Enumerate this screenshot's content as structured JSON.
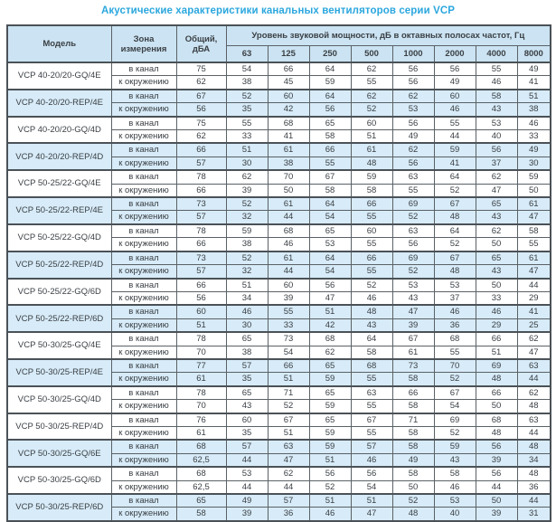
{
  "title": "Акустические характеристики канальных вентиляторов  серии VCP",
  "table": {
    "headers": {
      "model": "Модель",
      "zone": "Зона измерения",
      "total": "Общий, дБА",
      "spl": "Уровень звуковой мощности, дБ в октавных полосах частот, Гц",
      "frequencies": [
        "63",
        "125",
        "250",
        "500",
        "1000",
        "2000",
        "4000",
        "8000"
      ]
    },
    "zone_labels": [
      "в канал",
      "к окружению"
    ],
    "rows": [
      {
        "model": "VCP 40-20/20-GQ/4E",
        "highlight": false,
        "duct": {
          "total": "75",
          "values": [
            "54",
            "66",
            "64",
            "62",
            "56",
            "56",
            "55",
            "49"
          ]
        },
        "ambient": {
          "total": "62",
          "values": [
            "38",
            "45",
            "59",
            "55",
            "56",
            "49",
            "46",
            "41"
          ]
        }
      },
      {
        "model": "VCP 40-20/20-REP/4E",
        "highlight": true,
        "duct": {
          "total": "67",
          "values": [
            "52",
            "60",
            "64",
            "62",
            "62",
            "60",
            "58",
            "51"
          ]
        },
        "ambient": {
          "total": "56",
          "values": [
            "35",
            "42",
            "56",
            "52",
            "53",
            "46",
            "43",
            "38"
          ]
        }
      },
      {
        "model": "VCP 40-20/20-GQ/4D",
        "highlight": false,
        "duct": {
          "total": "75",
          "values": [
            "55",
            "68",
            "65",
            "60",
            "56",
            "55",
            "53",
            "46"
          ]
        },
        "ambient": {
          "total": "62",
          "values": [
            "33",
            "41",
            "58",
            "51",
            "49",
            "44",
            "40",
            "33"
          ]
        }
      },
      {
        "model": "VCP 40-20/20-REP/4D",
        "highlight": true,
        "duct": {
          "total": "66",
          "values": [
            "51",
            "61",
            "66",
            "61",
            "62",
            "59",
            "56",
            "49"
          ]
        },
        "ambient": {
          "total": "57",
          "values": [
            "30",
            "38",
            "55",
            "48",
            "56",
            "41",
            "37",
            "30"
          ]
        }
      },
      {
        "model": "VCP 50-25/22-GQ/4E",
        "highlight": false,
        "duct": {
          "total": "78",
          "values": [
            "62",
            "70",
            "67",
            "59",
            "63",
            "64",
            "62",
            "59"
          ]
        },
        "ambient": {
          "total": "66",
          "values": [
            "39",
            "50",
            "58",
            "58",
            "55",
            "52",
            "47",
            "50"
          ]
        }
      },
      {
        "model": "VCP 50-25/22-REP/4E",
        "highlight": true,
        "duct": {
          "total": "73",
          "values": [
            "52",
            "61",
            "64",
            "66",
            "69",
            "67",
            "65",
            "61"
          ]
        },
        "ambient": {
          "total": "57",
          "values": [
            "32",
            "44",
            "54",
            "55",
            "52",
            "48",
            "43",
            "47"
          ]
        }
      },
      {
        "model": "VCP 50-25/22-GQ/4D",
        "highlight": false,
        "duct": {
          "total": "78",
          "values": [
            "59",
            "68",
            "65",
            "60",
            "63",
            "64",
            "62",
            "58"
          ]
        },
        "ambient": {
          "total": "66",
          "values": [
            "38",
            "46",
            "53",
            "55",
            "56",
            "52",
            "50",
            "55"
          ]
        }
      },
      {
        "model": "VCP 50-25/22-REP/4D",
        "highlight": true,
        "duct": {
          "total": "73",
          "values": [
            "52",
            "61",
            "64",
            "66",
            "69",
            "67",
            "65",
            "61"
          ]
        },
        "ambient": {
          "total": "57",
          "values": [
            "32",
            "44",
            "54",
            "55",
            "52",
            "48",
            "43",
            "47"
          ]
        }
      },
      {
        "model": "VCP 50-25/22-GQ/6D",
        "highlight": false,
        "duct": {
          "total": "66",
          "values": [
            "51",
            "60",
            "56",
            "52",
            "53",
            "53",
            "50",
            "44"
          ]
        },
        "ambient": {
          "total": "56",
          "values": [
            "34",
            "39",
            "47",
            "46",
            "43",
            "37",
            "33",
            "29"
          ]
        }
      },
      {
        "model": "VCP 50-25/22-REP/6D",
        "highlight": true,
        "duct": {
          "total": "60",
          "values": [
            "46",
            "55",
            "51",
            "48",
            "47",
            "46",
            "46",
            "41"
          ]
        },
        "ambient": {
          "total": "51",
          "values": [
            "30",
            "33",
            "42",
            "43",
            "39",
            "36",
            "29",
            "25"
          ]
        }
      },
      {
        "model": "VCP 50-30/25-GQ/4E",
        "highlight": false,
        "duct": {
          "total": "78",
          "values": [
            "65",
            "73",
            "68",
            "64",
            "67",
            "68",
            "66",
            "62"
          ]
        },
        "ambient": {
          "total": "70",
          "values": [
            "38",
            "54",
            "62",
            "58",
            "61",
            "55",
            "51",
            "47"
          ]
        }
      },
      {
        "model": "VCP 50-30/25-REP/4E",
        "highlight": true,
        "duct": {
          "total": "77",
          "values": [
            "57",
            "66",
            "65",
            "68",
            "73",
            "70",
            "69",
            "63"
          ]
        },
        "ambient": {
          "total": "61",
          "values": [
            "35",
            "51",
            "59",
            "55",
            "58",
            "52",
            "48",
            "44"
          ]
        }
      },
      {
        "model": "VCP 50-30/25-GQ/4D",
        "highlight": false,
        "duct": {
          "total": "78",
          "values": [
            "65",
            "71",
            "65",
            "63",
            "66",
            "67",
            "66",
            "62"
          ]
        },
        "ambient": {
          "total": "70",
          "values": [
            "43",
            "52",
            "59",
            "55",
            "58",
            "54",
            "50",
            "48"
          ]
        }
      },
      {
        "model": "VCP 50-30/25-REP/4D",
        "highlight": false,
        "duct": {
          "total": "76",
          "values": [
            "60",
            "67",
            "65",
            "67",
            "71",
            "69",
            "68",
            "63"
          ]
        },
        "ambient": {
          "total": "61",
          "values": [
            "35",
            "51",
            "59",
            "55",
            "58",
            "52",
            "48",
            "44"
          ]
        }
      },
      {
        "model": "VCP 50-30/25-GQ/6E",
        "highlight": true,
        "duct": {
          "total": "68",
          "values": [
            "57",
            "63",
            "59",
            "57",
            "58",
            "59",
            "56",
            "48"
          ]
        },
        "ambient": {
          "total": "62,5",
          "values": [
            "44",
            "47",
            "51",
            "46",
            "49",
            "43",
            "39",
            "34"
          ]
        }
      },
      {
        "model": "VCP 50-30/25-GQ/6D",
        "highlight": false,
        "duct": {
          "total": "68",
          "values": [
            "53",
            "62",
            "56",
            "56",
            "58",
            "58",
            "56",
            "48"
          ]
        },
        "ambient": {
          "total": "62,5",
          "values": [
            "44",
            "44",
            "52",
            "54",
            "50",
            "46",
            "44",
            "36"
          ]
        }
      },
      {
        "model": "VCP 50-30/25-REP/6D",
        "highlight": true,
        "duct": {
          "total": "65",
          "values": [
            "49",
            "57",
            "51",
            "51",
            "52",
            "53",
            "50",
            "44"
          ]
        },
        "ambient": {
          "total": "58",
          "values": [
            "39",
            "36",
            "46",
            "47",
            "48",
            "40",
            "39",
            "31"
          ]
        }
      }
    ]
  }
}
